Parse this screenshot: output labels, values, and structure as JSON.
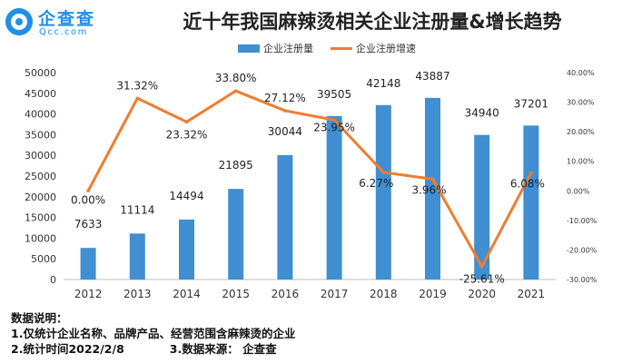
{
  "header": {
    "logo_name": "企查查",
    "logo_sub": "Qcc.com",
    "title": "近十年我国麻辣烫相关企业注册量&增长趋势"
  },
  "colors": {
    "bar": "#3f8fd2",
    "line": "#ed7d31"
  },
  "chart_data": {
    "type": "bar",
    "title": "近十年我国麻辣烫相关企业注册量&增长趋势",
    "categories": [
      "2012",
      "2013",
      "2014",
      "2015",
      "2016",
      "2017",
      "2018",
      "2019",
      "2020",
      "2021"
    ],
    "series": [
      {
        "name": "企业注册量",
        "type": "bar",
        "axis": "left",
        "values": [
          7633,
          11114,
          14494,
          21895,
          30044,
          39505,
          42148,
          43887,
          34940,
          37201
        ],
        "labels": [
          "7633",
          "11114",
          "14494",
          "21895",
          "30044",
          "39505",
          "42148",
          "43887",
          "34940",
          "37201"
        ]
      },
      {
        "name": "企业注册增速",
        "type": "line",
        "axis": "right",
        "values": [
          0.0,
          31.32,
          23.32,
          33.8,
          27.12,
          23.95,
          6.27,
          3.96,
          -25.61,
          6.08
        ],
        "labels": [
          "0.00%",
          "31.32%",
          "23.32%",
          "33.80%",
          "27.12%",
          "23.95%",
          "6.27%",
          "3.96%",
          "-25.61%",
          "6.08%"
        ]
      }
    ],
    "y_left": {
      "ylim": [
        0,
        50000
      ],
      "ticks": [
        "0",
        "5000",
        "10000",
        "15000",
        "20000",
        "25000",
        "30000",
        "35000",
        "40000",
        "45000",
        "50000"
      ]
    },
    "y_right": {
      "ylim": [
        -30,
        40
      ],
      "ticks": [
        "-30.00%",
        "-20.00%",
        "-10.00%",
        "0.00%",
        "10.00%",
        "20.00%",
        "30.00%",
        "40.00%"
      ]
    },
    "legend": "top-center",
    "grid": false
  },
  "notes": {
    "heading": "数据说明：",
    "line1": "1.仅统计企业名称、品牌产品、经营范围含麻辣烫的企业",
    "line2a": "2.统计时间2022/2/8",
    "line2b": "3.数据来源：  企查查"
  }
}
